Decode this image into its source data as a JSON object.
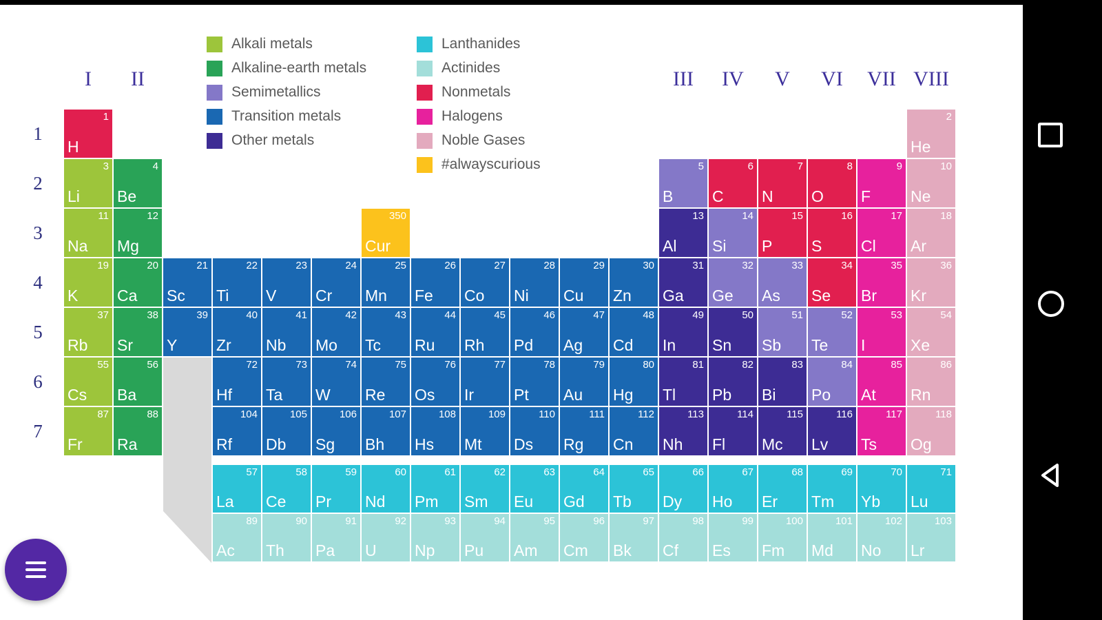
{
  "categories": {
    "alkali": "#9DC53B",
    "alkaline": "#29A357",
    "semi": "#8478C8",
    "transition": "#1A68B2",
    "other": "#3D2C94",
    "lanthanide": "#2CC3D7",
    "actinide": "#A3DEDA",
    "nonmetal": "#E11F4F",
    "halogen": "#E7219D",
    "noble": "#E3AABE",
    "curious": "#FCC21C"
  },
  "legend": {
    "columns": [
      [
        {
          "label": "Alkali metals",
          "cat": "alkali"
        },
        {
          "label": "Alkaline-earth metals",
          "cat": "alkaline"
        },
        {
          "label": "Semimetallics",
          "cat": "semi"
        },
        {
          "label": "Transition metals",
          "cat": "transition"
        },
        {
          "label": "Other metals",
          "cat": "other"
        }
      ],
      [
        {
          "label": "Lanthanides",
          "cat": "lanthanide"
        },
        {
          "label": "Actinides",
          "cat": "actinide"
        },
        {
          "label": "Nonmetals",
          "cat": "nonmetal"
        },
        {
          "label": "Halogens",
          "cat": "halogen"
        },
        {
          "label": "Noble Gases",
          "cat": "noble"
        },
        {
          "label": "#alwayscurious",
          "cat": "curious"
        }
      ]
    ]
  },
  "groups": [
    {
      "label": "I",
      "col": 1
    },
    {
      "label": "II",
      "col": 2
    },
    {
      "label": "III",
      "col": 13
    },
    {
      "label": "IV",
      "col": 14
    },
    {
      "label": "V",
      "col": 15
    },
    {
      "label": "VI",
      "col": 16
    },
    {
      "label": "VII",
      "col": 17
    },
    {
      "label": "VIII",
      "col": 18
    }
  ],
  "periods": [
    "1",
    "2",
    "3",
    "4",
    "5",
    "6",
    "7"
  ],
  "elements": [
    {
      "sym": "H",
      "num": 1,
      "cat": "nonmetal",
      "row": 1,
      "col": 1
    },
    {
      "sym": "He",
      "num": 2,
      "cat": "noble",
      "row": 1,
      "col": 18
    },
    {
      "sym": "Li",
      "num": 3,
      "cat": "alkali",
      "row": 2,
      "col": 1
    },
    {
      "sym": "Be",
      "num": 4,
      "cat": "alkaline",
      "row": 2,
      "col": 2
    },
    {
      "sym": "B",
      "num": 5,
      "cat": "semi",
      "row": 2,
      "col": 13
    },
    {
      "sym": "C",
      "num": 6,
      "cat": "nonmetal",
      "row": 2,
      "col": 14
    },
    {
      "sym": "N",
      "num": 7,
      "cat": "nonmetal",
      "row": 2,
      "col": 15
    },
    {
      "sym": "O",
      "num": 8,
      "cat": "nonmetal",
      "row": 2,
      "col": 16
    },
    {
      "sym": "F",
      "num": 9,
      "cat": "halogen",
      "row": 2,
      "col": 17
    },
    {
      "sym": "Ne",
      "num": 10,
      "cat": "noble",
      "row": 2,
      "col": 18
    },
    {
      "sym": "Na",
      "num": 11,
      "cat": "alkali",
      "row": 3,
      "col": 1
    },
    {
      "sym": "Mg",
      "num": 12,
      "cat": "alkaline",
      "row": 3,
      "col": 2
    },
    {
      "sym": "Cur",
      "num": 350,
      "cat": "curious",
      "row": 3,
      "col": 7
    },
    {
      "sym": "Al",
      "num": 13,
      "cat": "other",
      "row": 3,
      "col": 13
    },
    {
      "sym": "Si",
      "num": 14,
      "cat": "semi",
      "row": 3,
      "col": 14
    },
    {
      "sym": "P",
      "num": 15,
      "cat": "nonmetal",
      "row": 3,
      "col": 15
    },
    {
      "sym": "S",
      "num": 16,
      "cat": "nonmetal",
      "row": 3,
      "col": 16
    },
    {
      "sym": "Cl",
      "num": 17,
      "cat": "halogen",
      "row": 3,
      "col": 17
    },
    {
      "sym": "Ar",
      "num": 18,
      "cat": "noble",
      "row": 3,
      "col": 18
    },
    {
      "sym": "K",
      "num": 19,
      "cat": "alkali",
      "row": 4,
      "col": 1
    },
    {
      "sym": "Ca",
      "num": 20,
      "cat": "alkaline",
      "row": 4,
      "col": 2
    },
    {
      "sym": "Sc",
      "num": 21,
      "cat": "transition",
      "row": 4,
      "col": 3
    },
    {
      "sym": "Ti",
      "num": 22,
      "cat": "transition",
      "row": 4,
      "col": 4
    },
    {
      "sym": "V",
      "num": 23,
      "cat": "transition",
      "row": 4,
      "col": 5
    },
    {
      "sym": "Cr",
      "num": 24,
      "cat": "transition",
      "row": 4,
      "col": 6
    },
    {
      "sym": "Mn",
      "num": 25,
      "cat": "transition",
      "row": 4,
      "col": 7
    },
    {
      "sym": "Fe",
      "num": 26,
      "cat": "transition",
      "row": 4,
      "col": 8
    },
    {
      "sym": "Co",
      "num": 27,
      "cat": "transition",
      "row": 4,
      "col": 9
    },
    {
      "sym": "Ni",
      "num": 28,
      "cat": "transition",
      "row": 4,
      "col": 10
    },
    {
      "sym": "Cu",
      "num": 29,
      "cat": "transition",
      "row": 4,
      "col": 11
    },
    {
      "sym": "Zn",
      "num": 30,
      "cat": "transition",
      "row": 4,
      "col": 12
    },
    {
      "sym": "Ga",
      "num": 31,
      "cat": "other",
      "row": 4,
      "col": 13
    },
    {
      "sym": "Ge",
      "num": 32,
      "cat": "semi",
      "row": 4,
      "col": 14
    },
    {
      "sym": "As",
      "num": 33,
      "cat": "semi",
      "row": 4,
      "col": 15
    },
    {
      "sym": "Se",
      "num": 34,
      "cat": "nonmetal",
      "row": 4,
      "col": 16
    },
    {
      "sym": "Br",
      "num": 35,
      "cat": "halogen",
      "row": 4,
      "col": 17
    },
    {
      "sym": "Kr",
      "num": 36,
      "cat": "noble",
      "row": 4,
      "col": 18
    },
    {
      "sym": "Rb",
      "num": 37,
      "cat": "alkali",
      "row": 5,
      "col": 1
    },
    {
      "sym": "Sr",
      "num": 38,
      "cat": "alkaline",
      "row": 5,
      "col": 2
    },
    {
      "sym": "Y",
      "num": 39,
      "cat": "transition",
      "row": 5,
      "col": 3
    },
    {
      "sym": "Zr",
      "num": 40,
      "cat": "transition",
      "row": 5,
      "col": 4
    },
    {
      "sym": "Nb",
      "num": 41,
      "cat": "transition",
      "row": 5,
      "col": 5
    },
    {
      "sym": "Mo",
      "num": 42,
      "cat": "transition",
      "row": 5,
      "col": 6
    },
    {
      "sym": "Tc",
      "num": 43,
      "cat": "transition",
      "row": 5,
      "col": 7
    },
    {
      "sym": "Ru",
      "num": 44,
      "cat": "transition",
      "row": 5,
      "col": 8
    },
    {
      "sym": "Rh",
      "num": 45,
      "cat": "transition",
      "row": 5,
      "col": 9
    },
    {
      "sym": "Pd",
      "num": 46,
      "cat": "transition",
      "row": 5,
      "col": 10
    },
    {
      "sym": "Ag",
      "num": 47,
      "cat": "transition",
      "row": 5,
      "col": 11
    },
    {
      "sym": "Cd",
      "num": 48,
      "cat": "transition",
      "row": 5,
      "col": 12
    },
    {
      "sym": "In",
      "num": 49,
      "cat": "other",
      "row": 5,
      "col": 13
    },
    {
      "sym": "Sn",
      "num": 50,
      "cat": "other",
      "row": 5,
      "col": 14
    },
    {
      "sym": "Sb",
      "num": 51,
      "cat": "semi",
      "row": 5,
      "col": 15
    },
    {
      "sym": "Te",
      "num": 52,
      "cat": "semi",
      "row": 5,
      "col": 16
    },
    {
      "sym": "I",
      "num": 53,
      "cat": "halogen",
      "row": 5,
      "col": 17
    },
    {
      "sym": "Xe",
      "num": 54,
      "cat": "noble",
      "row": 5,
      "col": 18
    },
    {
      "sym": "Cs",
      "num": 55,
      "cat": "alkali",
      "row": 6,
      "col": 1
    },
    {
      "sym": "Ba",
      "num": 56,
      "cat": "alkaline",
      "row": 6,
      "col": 2
    },
    {
      "sym": "Hf",
      "num": 72,
      "cat": "transition",
      "row": 6,
      "col": 4
    },
    {
      "sym": "Ta",
      "num": 73,
      "cat": "transition",
      "row": 6,
      "col": 5
    },
    {
      "sym": "W",
      "num": 74,
      "cat": "transition",
      "row": 6,
      "col": 6
    },
    {
      "sym": "Re",
      "num": 75,
      "cat": "transition",
      "row": 6,
      "col": 7
    },
    {
      "sym": "Os",
      "num": 76,
      "cat": "transition",
      "row": 6,
      "col": 8
    },
    {
      "sym": "Ir",
      "num": 77,
      "cat": "transition",
      "row": 6,
      "col": 9
    },
    {
      "sym": "Pt",
      "num": 78,
      "cat": "transition",
      "row": 6,
      "col": 10
    },
    {
      "sym": "Au",
      "num": 79,
      "cat": "transition",
      "row": 6,
      "col": 11
    },
    {
      "sym": "Hg",
      "num": 80,
      "cat": "transition",
      "row": 6,
      "col": 12
    },
    {
      "sym": "Tl",
      "num": 81,
      "cat": "other",
      "row": 6,
      "col": 13
    },
    {
      "sym": "Pb",
      "num": 82,
      "cat": "other",
      "row": 6,
      "col": 14
    },
    {
      "sym": "Bi",
      "num": 83,
      "cat": "other",
      "row": 6,
      "col": 15
    },
    {
      "sym": "Po",
      "num": 84,
      "cat": "semi",
      "row": 6,
      "col": 16
    },
    {
      "sym": "At",
      "num": 85,
      "cat": "halogen",
      "row": 6,
      "col": 17
    },
    {
      "sym": "Rn",
      "num": 86,
      "cat": "noble",
      "row": 6,
      "col": 18
    },
    {
      "sym": "Fr",
      "num": 87,
      "cat": "alkali",
      "row": 7,
      "col": 1
    },
    {
      "sym": "Ra",
      "num": 88,
      "cat": "alkaline",
      "row": 7,
      "col": 2
    },
    {
      "sym": "Rf",
      "num": 104,
      "cat": "transition",
      "row": 7,
      "col": 4
    },
    {
      "sym": "Db",
      "num": 105,
      "cat": "transition",
      "row": 7,
      "col": 5
    },
    {
      "sym": "Sg",
      "num": 106,
      "cat": "transition",
      "row": 7,
      "col": 6
    },
    {
      "sym": "Bh",
      "num": 107,
      "cat": "transition",
      "row": 7,
      "col": 7
    },
    {
      "sym": "Hs",
      "num": 108,
      "cat": "transition",
      "row": 7,
      "col": 8
    },
    {
      "sym": "Mt",
      "num": 109,
      "cat": "transition",
      "row": 7,
      "col": 9
    },
    {
      "sym": "Ds",
      "num": 110,
      "cat": "transition",
      "row": 7,
      "col": 10
    },
    {
      "sym": "Rg",
      "num": 111,
      "cat": "transition",
      "row": 7,
      "col": 11
    },
    {
      "sym": "Cn",
      "num": 112,
      "cat": "transition",
      "row": 7,
      "col": 12
    },
    {
      "sym": "Nh",
      "num": 113,
      "cat": "other",
      "row": 7,
      "col": 13
    },
    {
      "sym": "Fl",
      "num": 114,
      "cat": "other",
      "row": 7,
      "col": 14
    },
    {
      "sym": "Mc",
      "num": 115,
      "cat": "other",
      "row": 7,
      "col": 15
    },
    {
      "sym": "Lv",
      "num": 116,
      "cat": "other",
      "row": 7,
      "col": 16
    },
    {
      "sym": "Ts",
      "num": 117,
      "cat": "halogen",
      "row": 7,
      "col": 17
    },
    {
      "sym": "Og",
      "num": 118,
      "cat": "noble",
      "row": 7,
      "col": 18
    },
    {
      "sym": "La",
      "num": 57,
      "cat": "lanthanide",
      "row": 8,
      "col": 4
    },
    {
      "sym": "Ce",
      "num": 58,
      "cat": "lanthanide",
      "row": 8,
      "col": 5
    },
    {
      "sym": "Pr",
      "num": 59,
      "cat": "lanthanide",
      "row": 8,
      "col": 6
    },
    {
      "sym": "Nd",
      "num": 60,
      "cat": "lanthanide",
      "row": 8,
      "col": 7
    },
    {
      "sym": "Pm",
      "num": 61,
      "cat": "lanthanide",
      "row": 8,
      "col": 8
    },
    {
      "sym": "Sm",
      "num": 62,
      "cat": "lanthanide",
      "row": 8,
      "col": 9
    },
    {
      "sym": "Eu",
      "num": 63,
      "cat": "lanthanide",
      "row": 8,
      "col": 10
    },
    {
      "sym": "Gd",
      "num": 64,
      "cat": "lanthanide",
      "row": 8,
      "col": 11
    },
    {
      "sym": "Tb",
      "num": 65,
      "cat": "lanthanide",
      "row": 8,
      "col": 12
    },
    {
      "sym": "Dy",
      "num": 66,
      "cat": "lanthanide",
      "row": 8,
      "col": 13
    },
    {
      "sym": "Ho",
      "num": 67,
      "cat": "lanthanide",
      "row": 8,
      "col": 14
    },
    {
      "sym": "Er",
      "num": 68,
      "cat": "lanthanide",
      "row": 8,
      "col": 15
    },
    {
      "sym": "Tm",
      "num": 69,
      "cat": "lanthanide",
      "row": 8,
      "col": 16
    },
    {
      "sym": "Yb",
      "num": 70,
      "cat": "lanthanide",
      "row": 8,
      "col": 17
    },
    {
      "sym": "Lu",
      "num": 71,
      "cat": "lanthanide",
      "row": 8,
      "col": 18
    },
    {
      "sym": "Ac",
      "num": 89,
      "cat": "actinide",
      "row": 9,
      "col": 4
    },
    {
      "sym": "Th",
      "num": 90,
      "cat": "actinide",
      "row": 9,
      "col": 5
    },
    {
      "sym": "Pa",
      "num": 91,
      "cat": "actinide",
      "row": 9,
      "col": 6
    },
    {
      "sym": "U",
      "num": 92,
      "cat": "actinide",
      "row": 9,
      "col": 7
    },
    {
      "sym": "Np",
      "num": 93,
      "cat": "actinide",
      "row": 9,
      "col": 8
    },
    {
      "sym": "Pu",
      "num": 94,
      "cat": "actinide",
      "row": 9,
      "col": 9
    },
    {
      "sym": "Am",
      "num": 95,
      "cat": "actinide",
      "row": 9,
      "col": 10
    },
    {
      "sym": "Cm",
      "num": 96,
      "cat": "actinide",
      "row": 9,
      "col": 11
    },
    {
      "sym": "Bk",
      "num": 97,
      "cat": "actinide",
      "row": 9,
      "col": 12
    },
    {
      "sym": "Cf",
      "num": 98,
      "cat": "actinide",
      "row": 9,
      "col": 13
    },
    {
      "sym": "Es",
      "num": 99,
      "cat": "actinide",
      "row": 9,
      "col": 14
    },
    {
      "sym": "Fm",
      "num": 100,
      "cat": "actinide",
      "row": 9,
      "col": 15
    },
    {
      "sym": "Md",
      "num": 101,
      "cat": "actinide",
      "row": 9,
      "col": 16
    },
    {
      "sym": "No",
      "num": 102,
      "cat": "actinide",
      "row": 9,
      "col": 17
    },
    {
      "sym": "Lr",
      "num": 103,
      "cat": "actinide",
      "row": 9,
      "col": 18
    }
  ]
}
